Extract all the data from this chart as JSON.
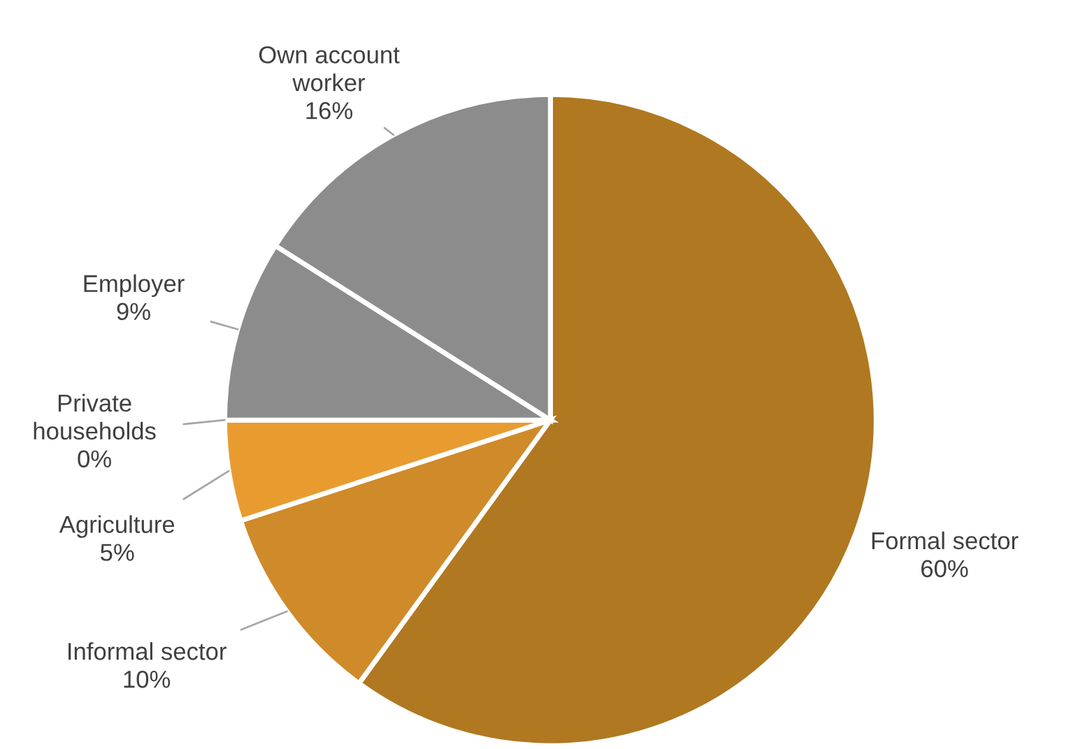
{
  "chart_data": {
    "type": "pie",
    "categories": [
      "Formal sector",
      "Informal sector",
      "Agriculture",
      "Private\nhouseholds",
      "Employer",
      "Own account\nworker"
    ],
    "values": [
      60,
      10,
      5,
      0,
      9,
      16
    ],
    "colors": [
      "#b07820",
      "#cf8a2a",
      "#e89c30",
      "#f0b050",
      "#8c8c8c",
      "#8c8c8c"
    ],
    "value_labels": [
      "60%",
      "10%",
      "5%",
      "0%",
      "9%",
      "16%"
    ]
  }
}
